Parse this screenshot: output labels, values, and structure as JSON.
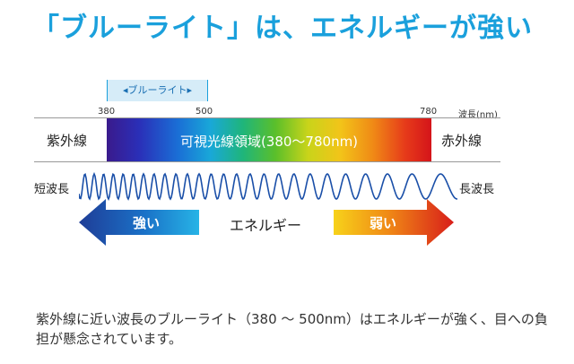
{
  "title": "「ブルーライト」は、エネルギーが強い",
  "blue_light_range_label": "ブルーライト",
  "ticks": {
    "t380": "380",
    "t500": "500",
    "t780": "780",
    "unit": "波長(nm)"
  },
  "bands": {
    "ultraviolet": "紫外線",
    "visible": "可視光線領域(380〜780nm)",
    "infrared": "赤外線"
  },
  "wave": {
    "short": "短波長",
    "long": "長波長"
  },
  "energy": {
    "strong": "強い",
    "label": "エネルギー",
    "weak": "弱い"
  },
  "caption": "紫外線に近い波長のブルーライト（380 〜 500nm）はエネルギーが強く、目への負担が懸念されています。",
  "colors": {
    "title": "#1aa0dc",
    "strong_arrow": "#1f3d97",
    "weak_arrow": "#e02a1a"
  }
}
